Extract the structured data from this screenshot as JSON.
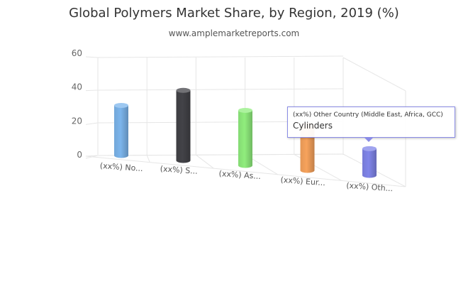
{
  "header": {
    "title": "Global Polymers Market Share, by Region, 2019 (%)",
    "subtitle": "www.amplemarketreports.com"
  },
  "tooltip": {
    "title": "(xx%) Other Country (Middle East, Africa, GCC)",
    "value": "Cylinders"
  },
  "chart_data": {
    "type": "bar",
    "style": "3d-cylinder",
    "title": "Global Polymers Market Share, by Region, 2019 (%)",
    "subtitle": "www.amplemarketreports.com",
    "categories": [
      "(xx%) No...",
      "(xx%) S...",
      "(xx%) As...",
      "(xx%) Eur...",
      "(xx%) Oth..."
    ],
    "values": [
      30,
      42,
      33,
      27,
      16
    ],
    "colors": [
      "#7cb5ec",
      "#434348",
      "#90ed7d",
      "#f7a35c",
      "#8085e9"
    ],
    "yticks": [
      0,
      20,
      40,
      60
    ],
    "ylim": [
      0,
      60
    ],
    "grid": true,
    "legend": "none"
  }
}
